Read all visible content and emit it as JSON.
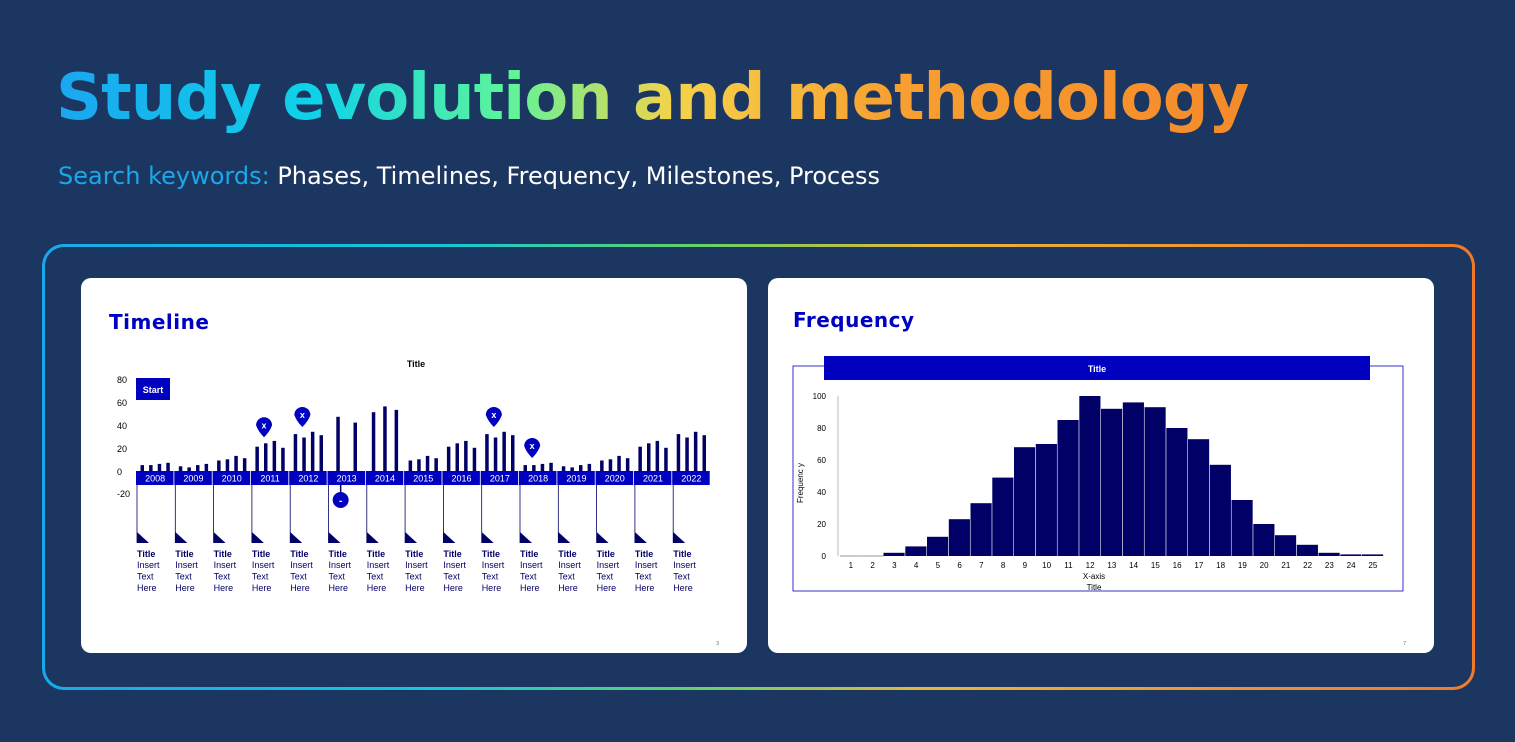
{
  "slide": {
    "title": "Study evolution and methodology",
    "keywords_label": "Search keywords:",
    "keywords": "Phases, Timelines, Frequency, Milestones, Process"
  },
  "timeline_card": {
    "heading": "Timeline",
    "chart_title": "Title",
    "start_label": "Start",
    "page_number": "3",
    "marker_symbols": {
      "x": "x",
      "minus": "-"
    },
    "milestone_label": {
      "title": "Title",
      "lines": [
        "Insert",
        "Text",
        "Here"
      ]
    }
  },
  "frequency_card": {
    "heading": "Frequency",
    "page_number": "7"
  },
  "colors": {
    "background": "#1b3660",
    "accent_blue": "#19a9ea",
    "chart_blue": "#0000c0",
    "bar_navy": "#000066"
  },
  "chart_data": [
    {
      "type": "bar",
      "title": "Title",
      "categories": [
        "2008",
        "2009",
        "2010",
        "2011",
        "2012",
        "2013",
        "2014",
        "2015",
        "2016",
        "2017",
        "2018",
        "2019",
        "2020",
        "2021",
        "2022"
      ],
      "yticks": [
        80,
        60,
        40,
        20,
        0,
        -20
      ],
      "ylim": [
        -20,
        80
      ],
      "values_per_category": [
        [
          6,
          6,
          7,
          8
        ],
        [
          5,
          4,
          6,
          7
        ],
        [
          10,
          11,
          14,
          12
        ],
        [
          22,
          25,
          27,
          21
        ],
        [
          33,
          30,
          35,
          32
        ],
        [
          48,
          43
        ],
        [
          52,
          57,
          54
        ],
        [
          10,
          11,
          14,
          12
        ],
        [
          22,
          25,
          27,
          21
        ],
        [
          33,
          30,
          35,
          32
        ],
        [
          6,
          6,
          7,
          8
        ],
        [
          5,
          4,
          6,
          7
        ],
        [
          10,
          11,
          14,
          12
        ],
        [
          22,
          25,
          27,
          21
        ],
        [
          33,
          30,
          35,
          32
        ]
      ],
      "markers": [
        {
          "category": "2011",
          "symbol": "x",
          "position": "above",
          "value": 38
        },
        {
          "category": "2012",
          "symbol": "x",
          "position": "above",
          "value": 47
        },
        {
          "category": "2013",
          "symbol": "-",
          "position": "below",
          "value": -25
        },
        {
          "category": "2017",
          "symbol": "x",
          "position": "above",
          "value": 47
        },
        {
          "category": "2018",
          "symbol": "x",
          "position": "above",
          "value": 20
        }
      ]
    },
    {
      "type": "bar",
      "title": "Title",
      "xlabel": "X-axis",
      "xlabel_sub": "Title",
      "ylabel": "Frequenc y",
      "categories": [
        "1",
        "2",
        "3",
        "4",
        "5",
        "6",
        "7",
        "8",
        "9",
        "10",
        "11",
        "12",
        "13",
        "14",
        "15",
        "16",
        "17",
        "18",
        "19",
        "20",
        "21",
        "22",
        "23",
        "24",
        "25"
      ],
      "values": [
        0,
        0,
        2,
        6,
        12,
        23,
        33,
        49,
        68,
        70,
        85,
        100,
        92,
        96,
        93,
        80,
        73,
        57,
        35,
        20,
        13,
        7,
        2,
        1,
        1
      ],
      "yticks": [
        0,
        20,
        40,
        60,
        80,
        100
      ],
      "ylim": [
        0,
        100
      ],
      "grid": false,
      "legend": "none"
    }
  ]
}
